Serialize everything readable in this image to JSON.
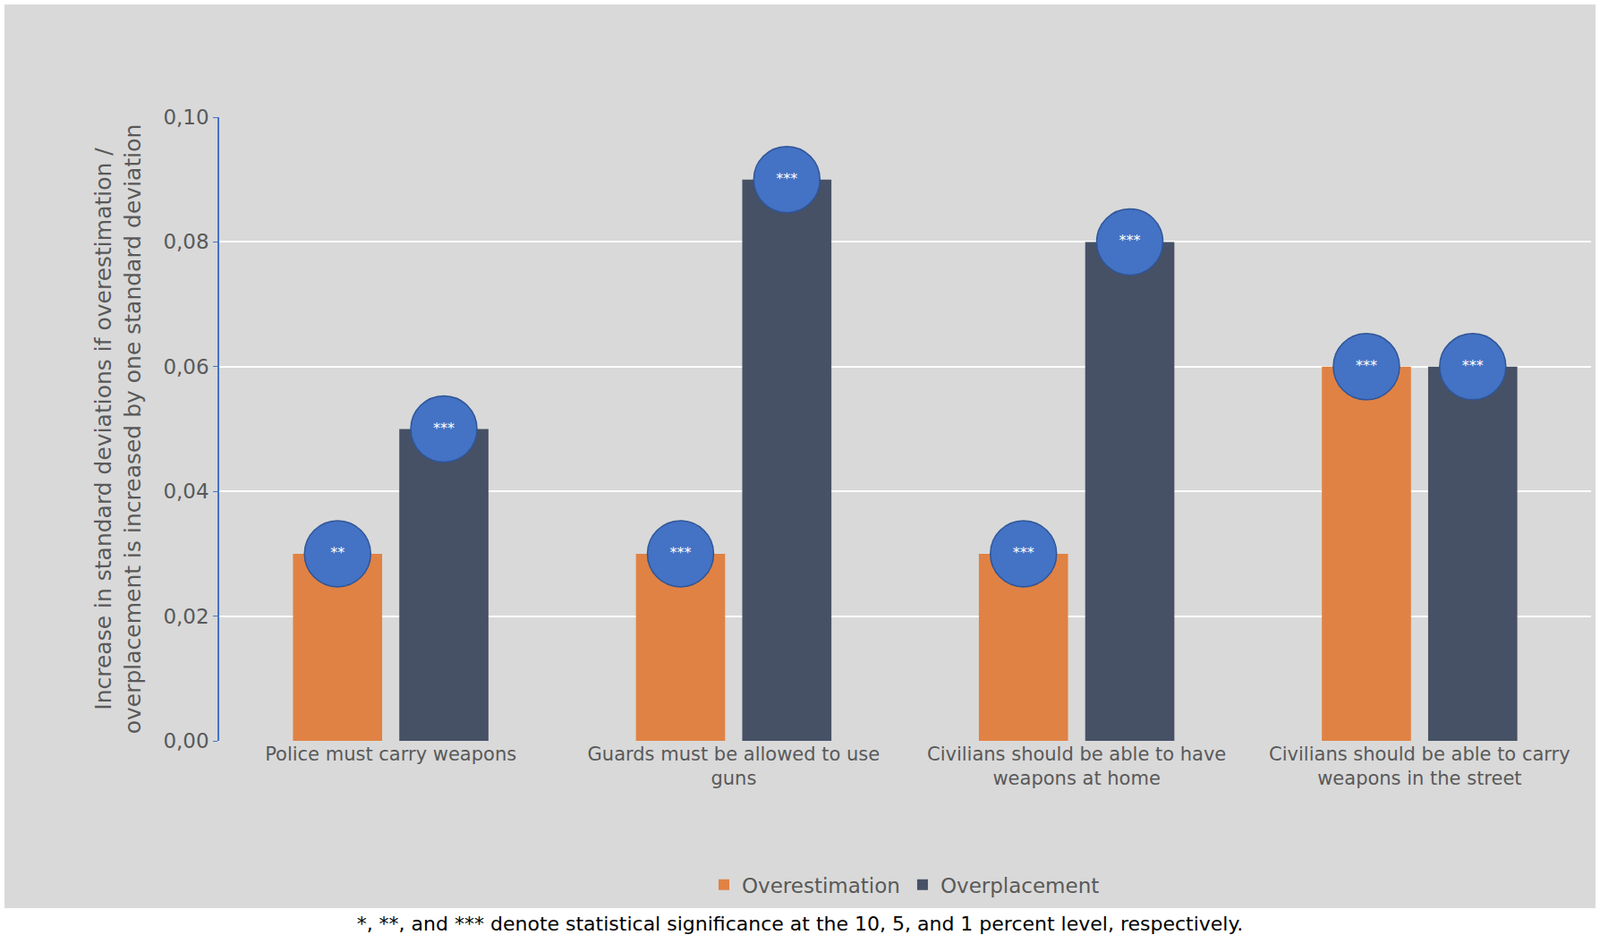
{
  "chart_data": {
    "type": "bar",
    "y_label": "Increase in standard deviations if overestimation / overplacement is increased by one standard deviation",
    "categories": [
      "Police must carry weapons",
      "Guards must be allowed to use guns",
      "Civilians should be able to have weapons at home",
      "Civilians should be able to carry weapons in the street"
    ],
    "series": [
      {
        "name": "Overestimation",
        "color": "#e08244",
        "values": [
          0.03,
          0.03,
          0.03,
          0.06
        ],
        "significance": [
          "**",
          "***",
          "***",
          "***"
        ]
      },
      {
        "name": "Overplacement",
        "color": "#465166",
        "values": [
          0.05,
          0.09,
          0.08,
          0.06
        ],
        "significance": [
          "***",
          "***",
          "***",
          "***"
        ]
      }
    ],
    "ylim": [
      0,
      0.1
    ],
    "yticks": [
      {
        "value": 0,
        "label": "0,00"
      },
      {
        "value": 0.02,
        "label": "0,02"
      },
      {
        "value": 0.04,
        "label": "0,04"
      },
      {
        "value": 0.06,
        "label": "0,06"
      },
      {
        "value": 0.08,
        "label": "0,08"
      },
      {
        "value": 0.1,
        "label": "0,10"
      }
    ],
    "grid": true,
    "legend": "bottom",
    "annotations": [
      "*, **, and *** denote statistical significance at the 10, 5, and 1 percent level, respectively."
    ]
  }
}
